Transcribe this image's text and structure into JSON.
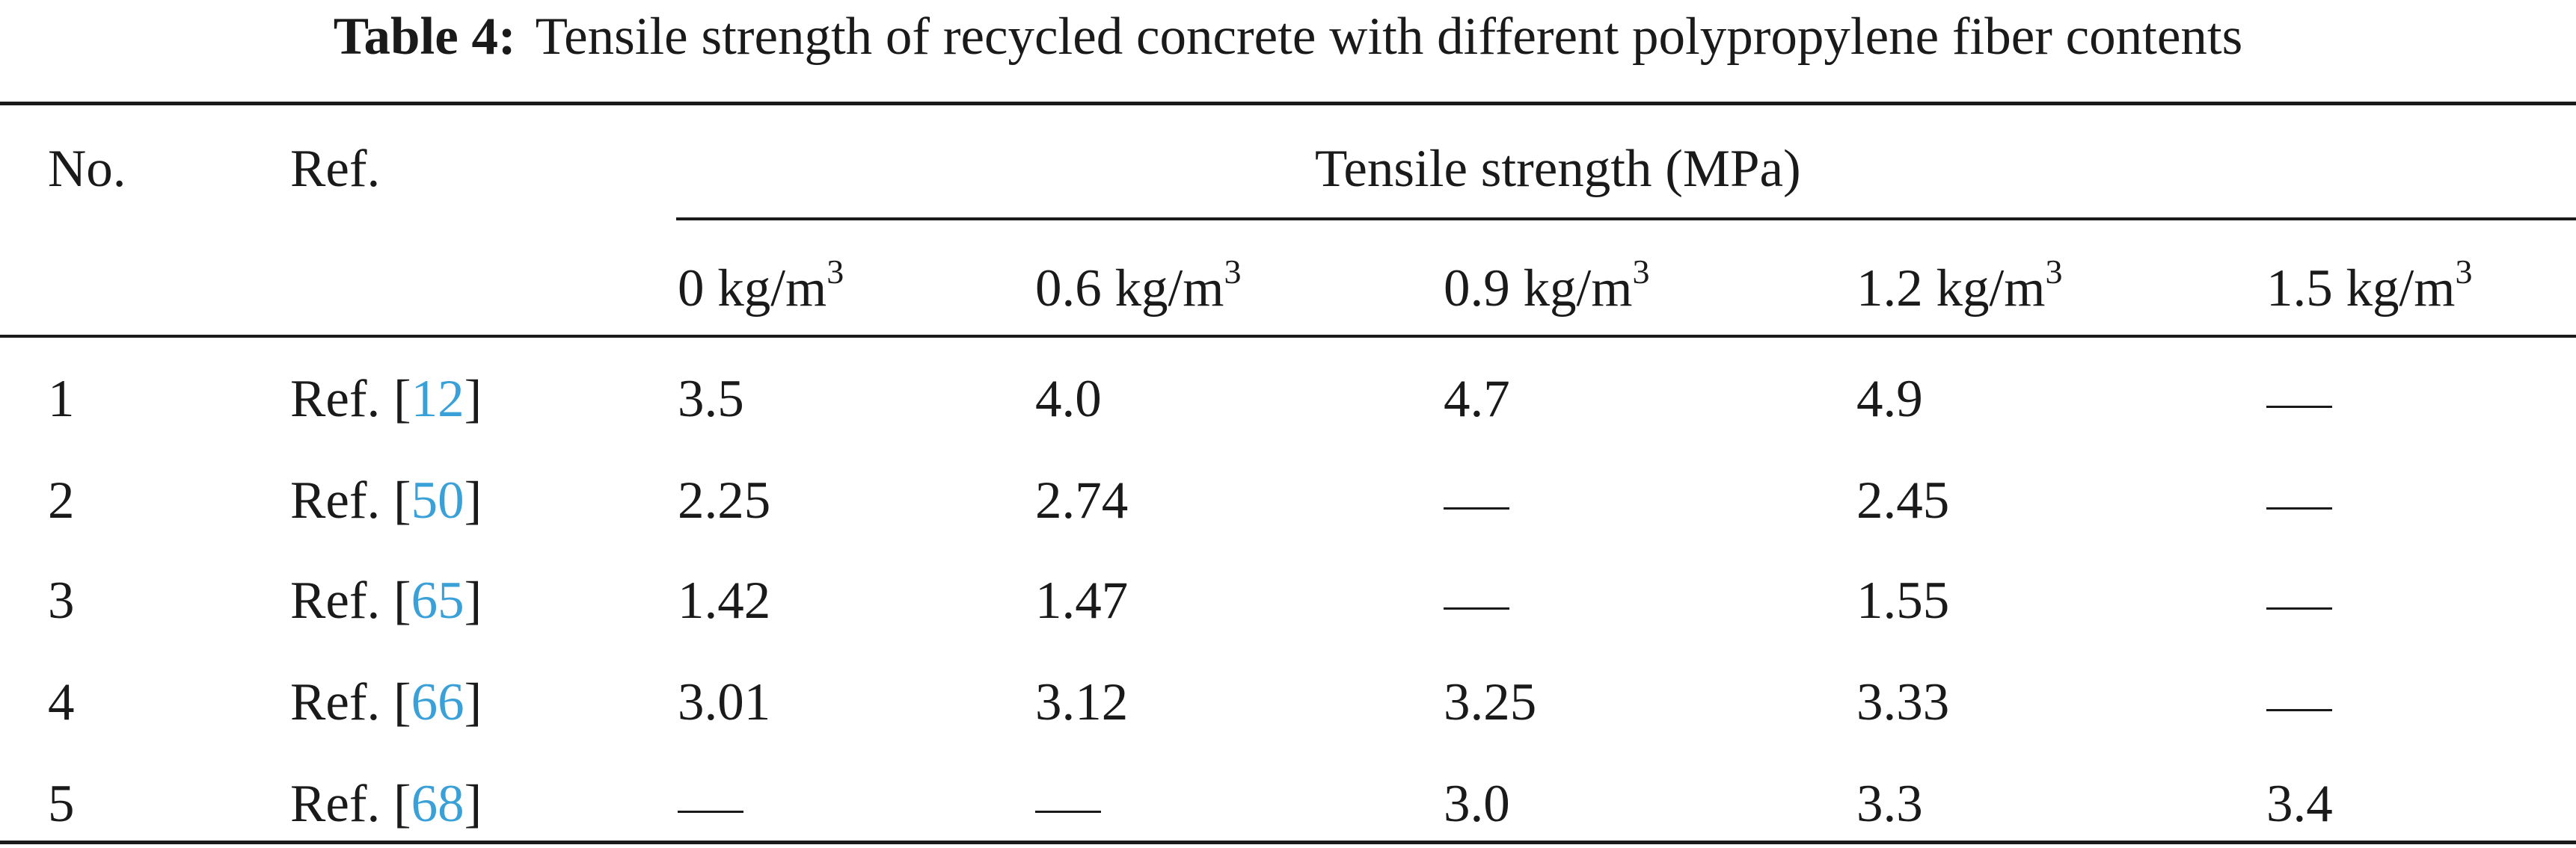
{
  "caption": {
    "label": "Table 4:",
    "text": "Tensile strength of recycled concrete with different polypropylene fiber contents"
  },
  "header": {
    "no": "No.",
    "ref": "Ref.",
    "group": "Tensile strength (MPa)",
    "contents": [
      {
        "value": "0 kg/m",
        "exp": "3"
      },
      {
        "value": "0.6 kg/m",
        "exp": "3"
      },
      {
        "value": "0.9 kg/m",
        "exp": "3"
      },
      {
        "value": "1.2 kg/m",
        "exp": "3"
      },
      {
        "value": "1.5 kg/m",
        "exp": "3"
      }
    ]
  },
  "rows": [
    {
      "no": "1",
      "ref_prefix": "Ref. [",
      "ref_num": "12",
      "ref_suffix": "]",
      "values": [
        "3.5",
        "4.0",
        "4.7",
        "4.9",
        "—"
      ]
    },
    {
      "no": "2",
      "ref_prefix": "Ref. [",
      "ref_num": "50",
      "ref_suffix": "]",
      "values": [
        "2.25",
        "2.74",
        "—",
        "2.45",
        "—"
      ]
    },
    {
      "no": "3",
      "ref_prefix": "Ref. [",
      "ref_num": "65",
      "ref_suffix": "]",
      "values": [
        "1.42",
        "1.47",
        "—",
        "1.55",
        "—"
      ]
    },
    {
      "no": "4",
      "ref_prefix": "Ref. [",
      "ref_num": "66",
      "ref_suffix": "]",
      "values": [
        "3.01",
        "3.12",
        "3.25",
        "3.33",
        "—"
      ]
    },
    {
      "no": "5",
      "ref_prefix": "Ref. [",
      "ref_num": "68",
      "ref_suffix": "]",
      "values": [
        "—",
        "—",
        "3.0",
        "3.3",
        "3.4"
      ]
    }
  ],
  "colors": {
    "text": "#1a1a1a",
    "link": "#3aa0d8"
  }
}
